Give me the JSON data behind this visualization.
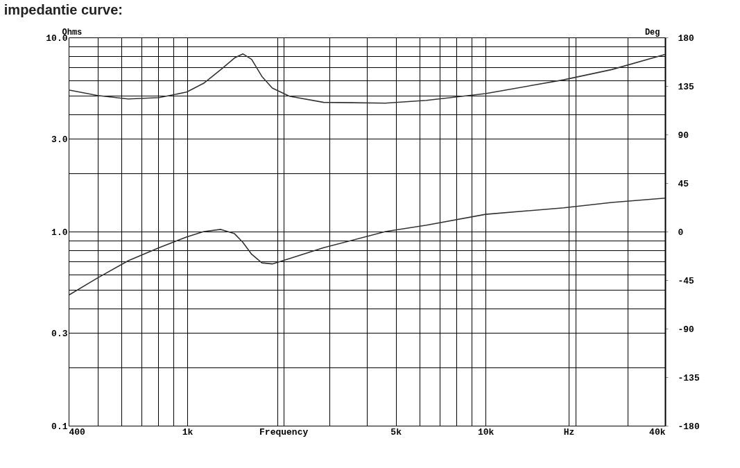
{
  "chart_data": {
    "type": "line",
    "title": "impedantie curve:",
    "ylabel": "Ohms",
    "y2label": "Deg",
    "x": [
      400,
      500,
      634,
      804,
      995,
      1135,
      1295,
      1440,
      1535,
      1643,
      1778,
      1927,
      2199,
      2864,
      4615,
      6340,
      10000,
      18280,
      26480,
      40000
    ],
    "series": [
      {
        "color": "#333333",
        "values": [
          5.36,
          5.02,
          4.82,
          4.9,
          5.23,
          5.81,
          6.83,
          7.84,
          8.23,
          7.71,
          6.3,
          5.49,
          4.98,
          4.63,
          4.59,
          4.74,
          5.14,
          6.05,
          6.83,
          8.17
        ]
      },
      {
        "color": "#333333",
        "axis": "y2",
        "values": [
          -59,
          -43,
          -27,
          -15,
          -5,
          0,
          2,
          -2,
          -10,
          -21,
          -29,
          -30,
          -25,
          -15,
          0,
          6,
          16,
          22,
          27,
          31
        ]
      }
    ],
    "log": "xy",
    "grid": true,
    "line_style": "solid",
    "marker": "none",
    "xlim": [
      400,
      40000
    ],
    "xticks": [
      {
        "value": 400,
        "label": "400"
      },
      {
        "value": 500,
        "label": null
      },
      {
        "value": 600,
        "label": null
      },
      {
        "value": 700,
        "label": null
      },
      {
        "value": 800,
        "label": null
      },
      {
        "value": 900,
        "label": null
      },
      {
        "value": 1000,
        "label": "1k"
      },
      {
        "value": 2000,
        "label": null
      },
      {
        "value": 2100,
        "label": "Frequency"
      },
      {
        "value": 3000,
        "label": null
      },
      {
        "value": 4000,
        "label": null
      },
      {
        "value": 5000,
        "label": "5k"
      },
      {
        "value": 6000,
        "label": null
      },
      {
        "value": 7000,
        "label": null
      },
      {
        "value": 8000,
        "label": null
      },
      {
        "value": 9000,
        "label": null
      },
      {
        "value": 10000,
        "label": "10k"
      },
      {
        "value": 19000,
        "label": "Hz"
      },
      {
        "value": 20000,
        "label": null
      },
      {
        "value": 30000,
        "label": null
      },
      {
        "value": 40000,
        "label": "40k"
      }
    ],
    "ylim": [
      0.1,
      10
    ],
    "yticks": [
      0.1,
      {
        "value": 0.2,
        "label": null
      },
      0.3,
      {
        "value": 0.4,
        "label": null
      },
      {
        "value": 0.5,
        "label": null
      },
      {
        "value": 0.6,
        "label": null
      },
      {
        "value": 0.7,
        "label": null
      },
      {
        "value": 0.8,
        "label": null
      },
      {
        "value": 0.9,
        "label": null
      },
      {
        "value": 1,
        "label": "1.0"
      },
      {
        "value": 2,
        "label": null
      },
      {
        "value": 3,
        "label": "3.0"
      },
      {
        "value": 4,
        "label": null
      },
      {
        "value": 5,
        "label": null
      },
      {
        "value": 6,
        "label": null
      },
      {
        "value": 7,
        "label": null
      },
      {
        "value": 8,
        "label": null
      },
      {
        "value": 9,
        "label": null
      },
      {
        "value": 10,
        "label": "10.0"
      }
    ],
    "y2lim": [
      -180,
      180
    ],
    "y2ticks": [
      -180,
      -135,
      -90,
      -45,
      0,
      45,
      90,
      135,
      180
    ]
  }
}
